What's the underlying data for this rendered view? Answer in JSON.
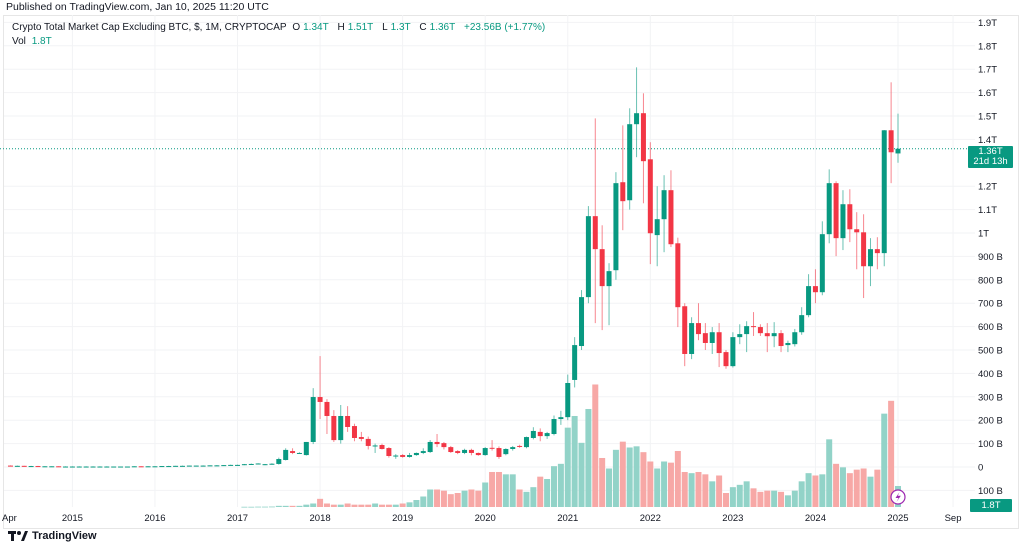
{
  "header": {
    "published": "Published on TradingView.com, Jan 10, 2025 11:20 UTC"
  },
  "legend": {
    "symbol": "Crypto Total Market Cap Excluding BTC, $, 1M, CRYPTOCAP",
    "o_label": "O",
    "o_value": "1.34T",
    "h_label": "H",
    "h_value": "1.51T",
    "l_label": "L",
    "l_value": "1.3T",
    "c_label": "C",
    "c_value": "1.36T",
    "change": "+23.56B (+1.77%)",
    "vol_label": "Vol",
    "vol_value": "1.8T"
  },
  "price_badge": {
    "price": "1.36T",
    "countdown": "21d 13h"
  },
  "volume_badge": "1.8T",
  "footer": {
    "brand": "TradingView"
  },
  "colors": {
    "up": "#089981",
    "down": "#f23645",
    "vol_up": "#92d3c8",
    "vol_down": "#f7a8a6",
    "event": "#9c27b0"
  },
  "chart_data": {
    "type": "candlestick",
    "title": "Crypto Total Market Cap Excluding BTC, $, 1M, CRYPTOCAP",
    "start": "2014-04",
    "interval": "1M",
    "price_unit": "B USD",
    "volume_unit": "T USD",
    "ylim": [
      -170,
      1950
    ],
    "y_ticks": [
      {
        "v": 1900,
        "label": "1.9T"
      },
      {
        "v": 1800,
        "label": "1.8T"
      },
      {
        "v": 1700,
        "label": "1.7T"
      },
      {
        "v": 1600,
        "label": "1.6T"
      },
      {
        "v": 1500,
        "label": "1.5T"
      },
      {
        "v": 1400,
        "label": "1.4T"
      },
      {
        "v": 1200,
        "label": "1.2T"
      },
      {
        "v": 1100,
        "label": "1.1T"
      },
      {
        "v": 1000,
        "label": "1T"
      },
      {
        "v": 900,
        "label": "900 B"
      },
      {
        "v": 800,
        "label": "800 B"
      },
      {
        "v": 700,
        "label": "700 B"
      },
      {
        "v": 600,
        "label": "600 B"
      },
      {
        "v": 500,
        "label": "500 B"
      },
      {
        "v": 400,
        "label": "400 B"
      },
      {
        "v": 300,
        "label": "300 B"
      },
      {
        "v": 200,
        "label": "200 B"
      },
      {
        "v": 100,
        "label": "100 B"
      },
      {
        "v": 0,
        "label": "0"
      },
      {
        "v": -100,
        "label": "100 B"
      }
    ],
    "x_ticks": [
      {
        "i": 0,
        "label": "Apr"
      },
      {
        "i": 9,
        "label": "2015"
      },
      {
        "i": 21,
        "label": "2016"
      },
      {
        "i": 33,
        "label": "2017"
      },
      {
        "i": 45,
        "label": "2018"
      },
      {
        "i": 57,
        "label": "2019"
      },
      {
        "i": 69,
        "label": "2020"
      },
      {
        "i": 81,
        "label": "2021"
      },
      {
        "i": 93,
        "label": "2022"
      },
      {
        "i": 105,
        "label": "2023"
      },
      {
        "i": 117,
        "label": "2024"
      },
      {
        "i": 129,
        "label": "2025"
      },
      {
        "i": 137,
        "label": "Sep"
      }
    ],
    "last_price": 1360,
    "candles": [
      [
        6,
        7,
        4,
        5
      ],
      [
        5,
        6,
        4,
        5
      ],
      [
        5,
        5,
        4,
        4
      ],
      [
        4,
        5,
        3,
        4
      ],
      [
        4,
        5,
        3,
        3
      ],
      [
        3,
        4,
        3,
        3
      ],
      [
        3,
        3,
        2,
        3
      ],
      [
        3,
        3,
        2,
        2
      ],
      [
        2,
        3,
        2,
        2
      ],
      [
        2,
        3,
        2,
        2
      ],
      [
        2,
        3,
        2,
        2
      ],
      [
        2,
        3,
        2,
        2
      ],
      [
        2,
        3,
        2,
        2
      ],
      [
        2,
        3,
        2,
        2
      ],
      [
        2,
        3,
        2,
        2
      ],
      [
        2,
        2,
        2,
        2
      ],
      [
        2,
        2,
        2,
        2
      ],
      [
        2,
        2,
        2,
        2
      ],
      [
        2,
        3,
        2,
        3
      ],
      [
        3,
        3,
        2,
        2
      ],
      [
        2,
        3,
        2,
        3
      ],
      [
        3,
        3,
        2,
        3
      ],
      [
        3,
        4,
        3,
        4
      ],
      [
        4,
        5,
        3,
        4
      ],
      [
        4,
        5,
        3,
        5
      ],
      [
        5,
        6,
        4,
        5
      ],
      [
        5,
        6,
        5,
        6
      ],
      [
        6,
        6,
        5,
        6
      ],
      [
        6,
        7,
        5,
        6
      ],
      [
        6,
        7,
        6,
        7
      ],
      [
        7,
        8,
        6,
        7
      ],
      [
        7,
        8,
        6,
        8
      ],
      [
        8,
        10,
        7,
        9
      ],
      [
        9,
        10,
        8,
        9
      ],
      [
        9,
        13,
        8,
        12
      ],
      [
        12,
        15,
        11,
        13
      ],
      [
        13,
        16,
        12,
        15
      ],
      [
        9,
        13,
        8,
        12
      ],
      [
        12,
        16,
        10,
        14
      ],
      [
        13,
        40,
        10,
        34
      ],
      [
        30,
        80,
        28,
        73
      ],
      [
        68,
        80,
        55,
        60
      ],
      [
        60,
        63,
        57,
        60
      ],
      [
        51,
        107,
        49,
        107
      ],
      [
        107,
        337,
        98,
        299
      ],
      [
        299,
        474,
        205,
        278
      ],
      [
        278,
        290,
        141,
        218
      ],
      [
        218,
        243,
        107,
        115
      ],
      [
        115,
        265,
        100,
        218
      ],
      [
        218,
        260,
        150,
        171
      ],
      [
        175,
        185,
        110,
        124
      ],
      [
        128,
        150,
        110,
        120
      ],
      [
        120,
        130,
        75,
        90
      ],
      [
        90,
        100,
        60,
        92
      ],
      [
        94,
        100,
        75,
        77
      ],
      [
        81,
        85,
        40,
        47
      ],
      [
        47,
        55,
        35,
        49
      ],
      [
        51,
        55,
        40,
        43
      ],
      [
        43,
        60,
        40,
        51
      ],
      [
        51,
        62,
        48,
        60
      ],
      [
        60,
        80,
        55,
        68
      ],
      [
        64,
        115,
        60,
        107
      ],
      [
        107,
        141,
        85,
        98
      ],
      [
        102,
        107,
        75,
        85
      ],
      [
        85,
        90,
        60,
        64
      ],
      [
        68,
        72,
        55,
        60
      ],
      [
        60,
        78,
        55,
        73
      ],
      [
        73,
        78,
        50,
        60
      ],
      [
        60,
        62,
        48,
        51
      ],
      [
        51,
        85,
        48,
        81
      ],
      [
        82,
        115,
        70,
        78
      ],
      [
        81,
        88,
        35,
        43
      ],
      [
        55,
        80,
        50,
        77
      ],
      [
        77,
        90,
        70,
        85
      ],
      [
        90,
        95,
        82,
        88
      ],
      [
        85,
        130,
        80,
        128
      ],
      [
        124,
        170,
        118,
        154
      ],
      [
        150,
        165,
        110,
        132
      ],
      [
        132,
        150,
        120,
        145
      ],
      [
        141,
        220,
        135,
        205
      ],
      [
        205,
        240,
        180,
        213
      ],
      [
        213,
        395,
        200,
        359
      ],
      [
        372,
        555,
        340,
        521
      ],
      [
        517,
        756,
        500,
        726
      ],
      [
        726,
        1115,
        700,
        1072
      ],
      [
        1072,
        1490,
        615,
        931
      ],
      [
        931,
        1033,
        585,
        773
      ],
      [
        773,
        871,
        606,
        837
      ],
      [
        841,
        1260,
        800,
        1213
      ],
      [
        1217,
        1460,
        1012,
        1136
      ],
      [
        1140,
        1533,
        1100,
        1465
      ],
      [
        1465,
        1708,
        1324,
        1512
      ],
      [
        1512,
        1597,
        1127,
        1307
      ],
      [
        1315,
        1388,
        867,
        999
      ],
      [
        991,
        1200,
        858,
        1059
      ],
      [
        1059,
        1247,
        918,
        1183
      ],
      [
        1183,
        1268,
        940,
        952
      ],
      [
        956,
        980,
        598,
        683
      ],
      [
        687,
        700,
        431,
        483
      ],
      [
        483,
        640,
        461,
        615
      ],
      [
        615,
        700,
        542,
        568
      ],
      [
        572,
        615,
        500,
        530
      ],
      [
        530,
        598,
        483,
        576
      ],
      [
        576,
        615,
        427,
        487
      ],
      [
        491,
        500,
        420,
        431
      ],
      [
        431,
        576,
        425,
        555
      ],
      [
        555,
        610,
        525,
        568
      ],
      [
        568,
        623,
        491,
        602
      ],
      [
        602,
        662,
        560,
        598
      ],
      [
        598,
        610,
        560,
        572
      ],
      [
        572,
        615,
        491,
        559
      ],
      [
        559,
        619,
        512,
        572
      ],
      [
        572,
        585,
        491,
        517
      ],
      [
        521,
        540,
        491,
        530
      ],
      [
        525,
        590,
        515,
        576
      ],
      [
        576,
        683,
        565,
        649
      ],
      [
        649,
        824,
        640,
        773
      ],
      [
        773,
        845,
        700,
        747
      ],
      [
        747,
        1050,
        734,
        995
      ],
      [
        995,
        1272,
        956,
        1213
      ],
      [
        1213,
        1221,
        901,
        978
      ],
      [
        978,
        1183,
        927,
        1123
      ],
      [
        1123,
        1187,
        961,
        1016
      ],
      [
        1016,
        1089,
        845,
        1003
      ],
      [
        1003,
        1080,
        722,
        858
      ],
      [
        858,
        978,
        773,
        931
      ],
      [
        931,
        982,
        845,
        914
      ],
      [
        914,
        1440,
        858,
        1439
      ],
      [
        1439,
        1644,
        1213,
        1345
      ],
      [
        1340,
        1510,
        1300,
        1360
      ]
    ],
    "volumes": [
      0,
      0,
      0,
      0,
      0,
      0,
      0,
      0,
      0,
      0,
      0,
      0,
      0,
      0,
      0,
      0,
      0,
      0,
      0,
      0,
      0,
      0,
      0,
      0,
      0,
      0,
      0,
      0,
      0,
      0,
      0,
      0,
      0,
      0,
      0.02,
      0.02,
      0.03,
      0.03,
      0.04,
      0.1,
      0.1,
      0.1,
      0.1,
      0.2,
      0.3,
      0.7,
      0.3,
      0.2,
      0.2,
      0.3,
      0.2,
      0.2,
      0.2,
      0.3,
      0.2,
      0.2,
      0.2,
      0.3,
      0.4,
      0.6,
      0.9,
      1.5,
      1.5,
      1.4,
      1.1,
      1.2,
      1.4,
      1.5,
      1.4,
      2.1,
      3.0,
      3.0,
      2.8,
      2.8,
      1.5,
      1.3,
      1.7,
      2.6,
      2.4,
      3.5,
      3.7,
      6.8,
      7.8,
      5.5,
      8.4,
      10.5,
      4.2,
      3.3,
      4.9,
      5.6,
      5.1,
      5.2,
      4.7,
      3.9,
      3.3,
      3.9,
      3.8,
      4.8,
      3.0,
      2.9,
      3.0,
      2.8,
      2.2,
      2.7,
      1.2,
      1.7,
      1.9,
      2.2,
      1.6,
      1.3,
      1.4,
      1.4,
      1.3,
      1.0,
      1.4,
      2.2,
      2.9,
      2.7,
      2.8,
      5.8,
      3.7,
      3.4,
      2.9,
      3.2,
      3.3,
      2.6,
      3.2,
      8.0,
      9.1,
      1.8
    ]
  }
}
